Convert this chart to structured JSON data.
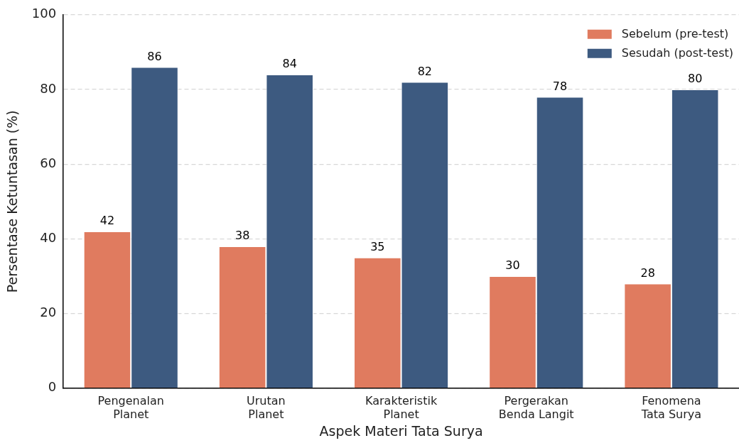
{
  "chart_data": {
    "type": "bar",
    "xlabel": "Aspek Materi Tata Surya",
    "ylabel": "Persentase Ketuntasan (%)",
    "categories": [
      "Pengenalan\nPlanet",
      "Urutan\nPlanet",
      "Karakteristik\nPlanet",
      "Pergerakan\nBenda Langit",
      "Fenomena\nTata Surya"
    ],
    "series": [
      {
        "name": "Sebelum (pre-test)",
        "color": "#e07b5f",
        "values": [
          42,
          38,
          35,
          30,
          28
        ]
      },
      {
        "name": "Sesudah (post-test)",
        "color": "#3d5a80",
        "values": [
          86,
          84,
          82,
          78,
          80
        ]
      }
    ],
    "ylim": [
      0,
      100
    ],
    "yticks": [
      0,
      20,
      40,
      60,
      80,
      100
    ],
    "grid": "y",
    "legend": "top right",
    "data_labels": true
  }
}
